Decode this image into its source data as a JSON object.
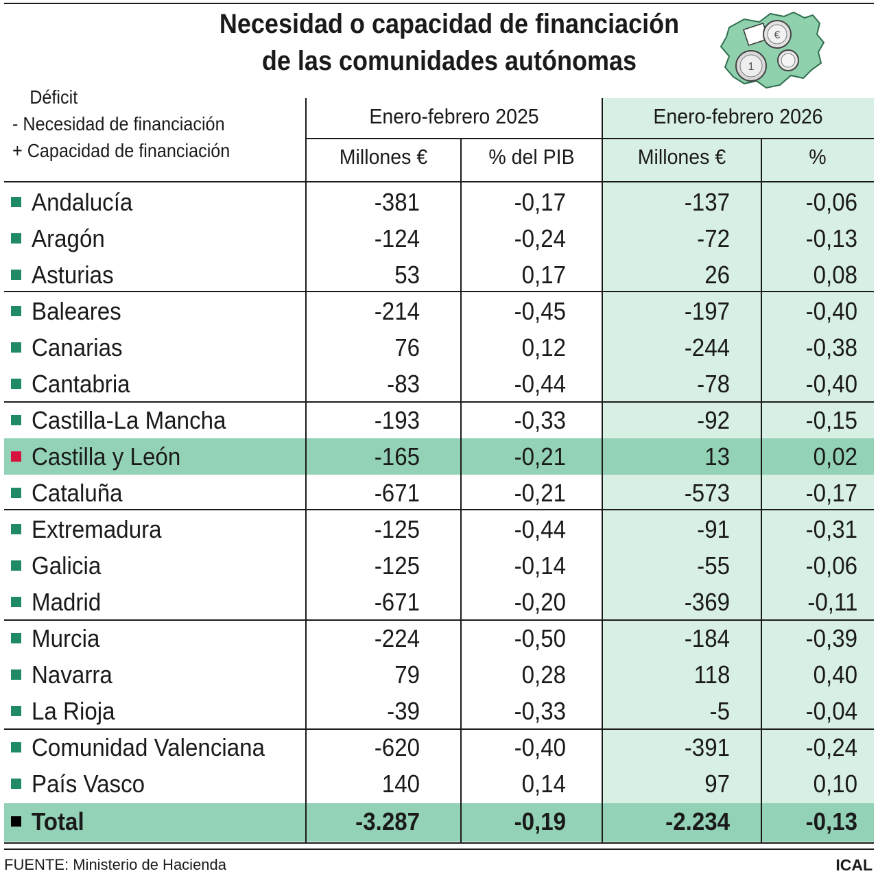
{
  "title": {
    "line1": "Necesidad o capacidad de financiación",
    "line2": "de las comunidades autónomas"
  },
  "legend": {
    "line1": "Déficit",
    "line2": "-  Necesidad de financiación",
    "line3": "+ Capacidad de financiación"
  },
  "header": {
    "group_2025": "Enero-febrero 2025",
    "group_2026": "Enero-febrero 2026",
    "col1": "Millones €",
    "col2": "% del PIB",
    "col3": "Millones €",
    "col4": "%"
  },
  "colors": {
    "row_marker": "#1f8a63",
    "highlight_marker": "#d6133e",
    "total_marker": "#000000",
    "shade_2026": "#d8efe3",
    "highlight_row": "#93d2b6"
  },
  "chart_data": {
    "type": "table",
    "title": "Necesidad o capacidad de financiación de las comunidades autónomas",
    "columns": [
      "Millones € (Enero-febrero 2025)",
      "% del PIB (Enero-febrero 2025)",
      "Millones € (Enero-febrero 2026)",
      "% (Enero-febrero 2026)"
    ],
    "highlighted_row": "Castilla y León",
    "rows": [
      {
        "name": "Andalucía",
        "m2025": "-381",
        "p2025": "-0,17",
        "m2026": "-137",
        "p2026": "-0,06"
      },
      {
        "name": "Aragón",
        "m2025": "-124",
        "p2025": "-0,24",
        "m2026": "-72",
        "p2026": "-0,13"
      },
      {
        "name": "Asturias",
        "m2025": "53",
        "p2025": "0,17",
        "m2026": "26",
        "p2026": "0,08"
      },
      {
        "name": "Baleares",
        "m2025": "-214",
        "p2025": "-0,45",
        "m2026": "-197",
        "p2026": "-0,40"
      },
      {
        "name": "Canarias",
        "m2025": "76",
        "p2025": "0,12",
        "m2026": "-244",
        "p2026": "-0,38"
      },
      {
        "name": "Cantabria",
        "m2025": "-83",
        "p2025": "-0,44",
        "m2026": "-78",
        "p2026": "-0,40"
      },
      {
        "name": "Castilla-La Mancha",
        "m2025": "-193",
        "p2025": "-0,33",
        "m2026": "-92",
        "p2026": "-0,15"
      },
      {
        "name": "Castilla y León",
        "m2025": "-165",
        "p2025": "-0,21",
        "m2026": "13",
        "p2026": "0,02"
      },
      {
        "name": "Cataluña",
        "m2025": "-671",
        "p2025": "-0,21",
        "m2026": "-573",
        "p2026": "-0,17"
      },
      {
        "name": "Extremadura",
        "m2025": "-125",
        "p2025": "-0,44",
        "m2026": "-91",
        "p2026": "-0,31"
      },
      {
        "name": "Galicia",
        "m2025": "-125",
        "p2025": "-0,14",
        "m2026": "-55",
        "p2026": "-0,06"
      },
      {
        "name": "Madrid",
        "m2025": "-671",
        "p2025": "-0,20",
        "m2026": "-369",
        "p2026": "-0,11"
      },
      {
        "name": "Murcia",
        "m2025": "-224",
        "p2025": "-0,50",
        "m2026": "-184",
        "p2026": "-0,39"
      },
      {
        "name": "Navarra",
        "m2025": "79",
        "p2025": "0,28",
        "m2026": "118",
        "p2026": "0,40"
      },
      {
        "name": "La Rioja",
        "m2025": "-39",
        "p2025": "-0,33",
        "m2026": "-5",
        "p2026": "-0,04"
      },
      {
        "name": "Comunidad Valenciana",
        "m2025": "-620",
        "p2025": "-0,40",
        "m2026": "-391",
        "p2026": "-0,24"
      },
      {
        "name": "País Vasco",
        "m2025": "140",
        "p2025": "0,14",
        "m2026": "97",
        "p2026": "0,10"
      }
    ],
    "total": {
      "name": "Total",
      "m2025": "-3.287",
      "p2025": "-0,19",
      "m2026": "-2.234",
      "p2026": "-0,13"
    }
  },
  "footer": {
    "source": "FUENTE: Ministerio de Hacienda",
    "logo": "ICAL"
  }
}
